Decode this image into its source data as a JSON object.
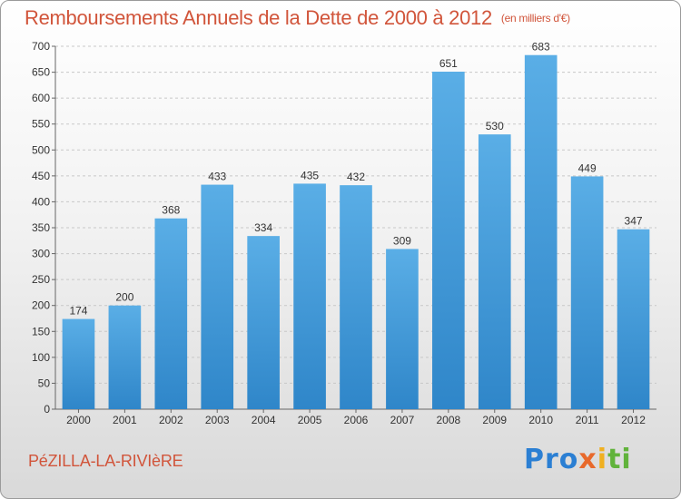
{
  "title": "Remboursements Annuels de la Dette de 2000 à 2012",
  "unit": "(en milliers d'€)",
  "town": "PéZILLA-LA-RIVIèRE",
  "logo": {
    "p1": "Pro",
    "p2": "x",
    "p3": "i",
    "p4": "ti"
  },
  "colors": {
    "bar_top": "#5aaee6",
    "bar_bottom": "#2f86c9",
    "title": "#d1553b",
    "grid": "#c8c8c8"
  },
  "chart_data": {
    "type": "bar",
    "title": "Remboursements Annuels de la Dette de 2000 à 2012",
    "xlabel": "",
    "ylabel": "",
    "ylim": [
      0,
      700
    ],
    "yticks": [
      0,
      50,
      100,
      150,
      200,
      250,
      300,
      350,
      400,
      450,
      500,
      550,
      600,
      650,
      700
    ],
    "categories": [
      "2000",
      "2001",
      "2002",
      "2003",
      "2004",
      "2005",
      "2006",
      "2007",
      "2008",
      "2009",
      "2010",
      "2011",
      "2012"
    ],
    "values": [
      174,
      200,
      368,
      433,
      334,
      435,
      432,
      309,
      651,
      530,
      683,
      449,
      347
    ],
    "grid": true
  }
}
